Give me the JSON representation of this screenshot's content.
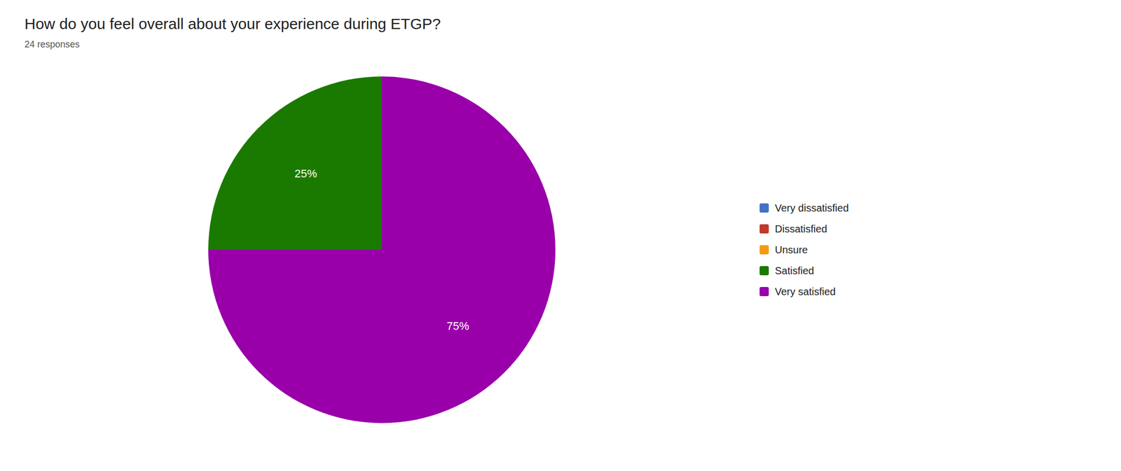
{
  "chart_data": {
    "type": "pie",
    "title": "How do you feel overall about your experience during ETGP?",
    "subtitle": "24 responses",
    "categories": [
      "Very satisfied",
      "Satisfied"
    ],
    "values": [
      75,
      25
    ],
    "value_labels": [
      "75%",
      "25%"
    ],
    "colors": [
      "#9900aa",
      "#1a7a00"
    ],
    "data_labels": true,
    "legend": "right",
    "legend_labels": [
      "Very dissatisfied",
      "Dissatisfied",
      "Unsure",
      "Satisfied",
      "Very satisfied"
    ],
    "legend_colors": [
      "#4472c4",
      "#c0392b",
      "#f39c12",
      "#1a7a00",
      "#9900aa"
    ]
  }
}
